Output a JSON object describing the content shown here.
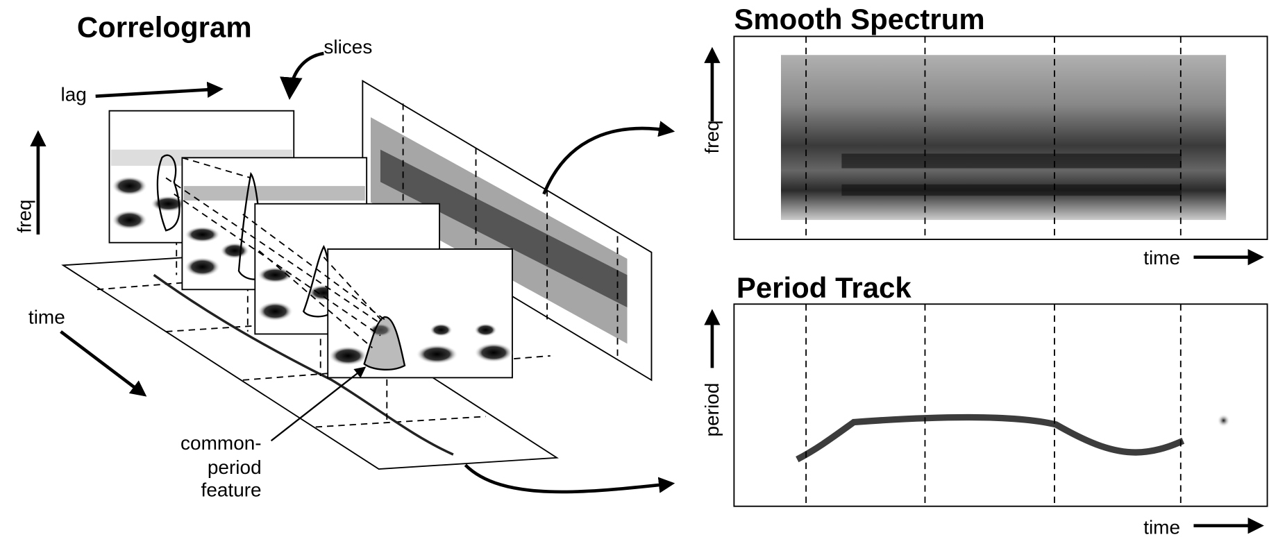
{
  "correlogram": {
    "title": "Correlogram",
    "slices_label": "slices",
    "lag_label": "lag",
    "freq_label": "freq",
    "time_label": "time",
    "feature_label": [
      "common-",
      "period",
      "feature"
    ]
  },
  "smooth_spectrum": {
    "title": "Smooth Spectrum",
    "y_label": "freq",
    "x_label": "time"
  },
  "period_track": {
    "title": "Period Track",
    "y_label": "period",
    "x_label": "time"
  }
}
